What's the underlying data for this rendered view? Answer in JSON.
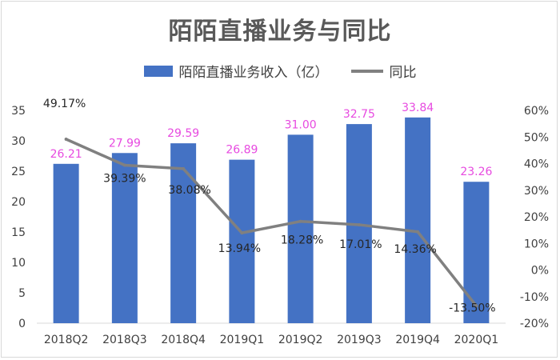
{
  "chart_data": {
    "type": "bar+line",
    "title": "陌陌直播业务与同比",
    "categories": [
      "2018Q2",
      "2018Q3",
      "2018Q4",
      "2019Q1",
      "2019Q2",
      "2019Q3",
      "2019Q4",
      "2020Q1"
    ],
    "series": [
      {
        "name": "陌陌直播业务收入（亿）",
        "type": "bar",
        "axis": "left",
        "values": [
          26.21,
          27.99,
          29.59,
          26.89,
          31.0,
          32.75,
          33.84,
          23.26
        ],
        "labels": [
          "26.21",
          "27.99",
          "29.59",
          "26.89",
          "31.00",
          "32.75",
          "33.84",
          "23.26"
        ]
      },
      {
        "name": "同比",
        "type": "line",
        "axis": "right",
        "values": [
          49.17,
          39.39,
          38.08,
          13.94,
          18.28,
          17.01,
          14.36,
          -13.5
        ],
        "labels": [
          "49.17%",
          "39.39%",
          "38.08%",
          "13.94%",
          "18.28%",
          "17.01%",
          "14.36%",
          "-13.50%"
        ]
      }
    ],
    "y_left": {
      "min": 0,
      "max": 35,
      "ticks": [
        "0",
        "5",
        "10",
        "15",
        "20",
        "25",
        "30",
        "35"
      ]
    },
    "y_right": {
      "min": -20,
      "max": 60,
      "ticks": [
        "-20%",
        "-10%",
        "0%",
        "10%",
        "20%",
        "30%",
        "40%",
        "50%",
        "60%"
      ]
    },
    "colors": {
      "bar": "#4472c4",
      "line": "#808080",
      "bar_label": "#e74ae0",
      "line_label": "#262626"
    }
  }
}
